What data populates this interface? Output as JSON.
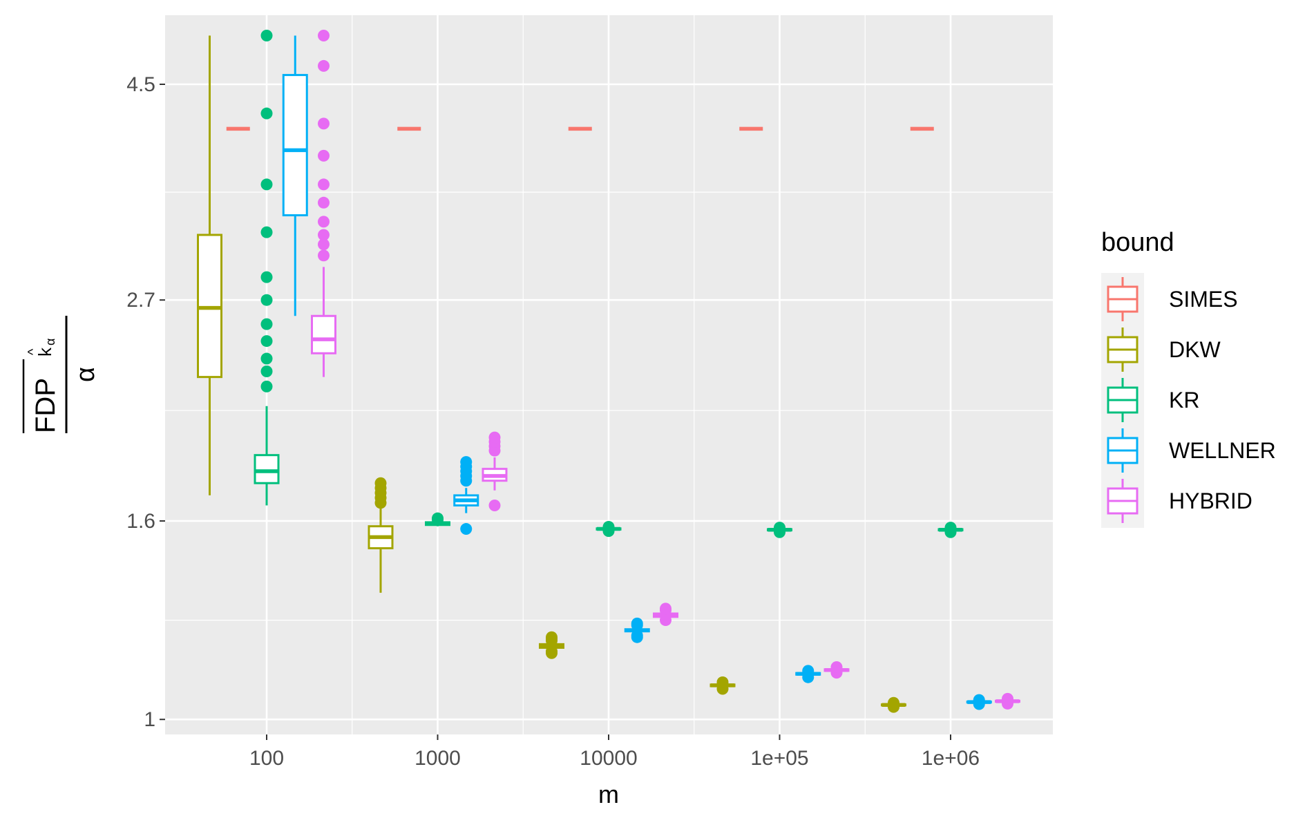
{
  "chart_data": {
    "type": "boxplot",
    "xlabel": "m",
    "ylabel": {
      "numerator_main": "FDP",
      "numerator_sub": "k",
      "numerator_subsub": "α",
      "numerator_hat": "^",
      "denominator": "α"
    },
    "x_scale": "log10",
    "categories": [
      "100",
      "1000",
      "10000",
      "1e+05",
      "1e+06"
    ],
    "y_scale": "log",
    "y_ticks": [
      1,
      1.6,
      2.7,
      4.5
    ],
    "y_tick_labels": [
      "1",
      "1.6",
      "2.7",
      "4.5"
    ],
    "ylim": [
      0.965,
      5.3
    ],
    "grid": true,
    "legend_position": "right",
    "legend_title": "bound",
    "series": [
      {
        "name": "SIMES",
        "color": "#F8766D",
        "boxes": [
          {
            "m": "100",
            "min": 4.05,
            "q1": 4.05,
            "median": 4.05,
            "q3": 4.05,
            "max": 4.05,
            "outliers": []
          },
          {
            "m": "1000",
            "min": 4.05,
            "q1": 4.05,
            "median": 4.05,
            "q3": 4.05,
            "max": 4.05,
            "outliers": []
          },
          {
            "m": "10000",
            "min": 4.05,
            "q1": 4.05,
            "median": 4.05,
            "q3": 4.05,
            "max": 4.05,
            "outliers": []
          },
          {
            "m": "1e+05",
            "min": 4.05,
            "q1": 4.05,
            "median": 4.05,
            "q3": 4.05,
            "max": 4.05,
            "outliers": []
          },
          {
            "m": "1e+06",
            "min": 4.05,
            "q1": 4.05,
            "median": 4.05,
            "q3": 4.05,
            "max": 4.05,
            "outliers": []
          }
        ]
      },
      {
        "name": "DKW",
        "color": "#A3A500",
        "boxes": [
          {
            "m": "100",
            "min": 1.7,
            "q1": 2.25,
            "median": 2.65,
            "q3": 3.15,
            "max": 5.05,
            "outliers": []
          },
          {
            "m": "1000",
            "min": 1.35,
            "q1": 1.5,
            "median": 1.54,
            "q3": 1.58,
            "max": 1.65,
            "outliers": [
              1.67,
              1.69,
              1.71,
              1.73,
              1.75
            ]
          },
          {
            "m": "10000",
            "min": 1.18,
            "q1": 1.185,
            "median": 1.19,
            "q3": 1.195,
            "max": 1.2,
            "outliers": [
              1.17,
              1.175,
              1.205,
              1.21,
              1.215
            ]
          },
          {
            "m": "1e+05",
            "min": 1.08,
            "q1": 1.082,
            "median": 1.084,
            "q3": 1.086,
            "max": 1.088,
            "outliers": [
              1.075,
              1.092
            ]
          },
          {
            "m": "1e+06",
            "min": 1.033,
            "q1": 1.034,
            "median": 1.035,
            "q3": 1.036,
            "max": 1.037,
            "outliers": [
              1.03,
              1.04
            ]
          }
        ]
      },
      {
        "name": "KR",
        "color": "#00BF7D",
        "boxes": [
          {
            "m": "100",
            "min": 1.66,
            "q1": 1.75,
            "median": 1.8,
            "q3": 1.87,
            "max": 2.1,
            "outliers": [
              2.2,
              2.28,
              2.35,
              2.45,
              2.55,
              2.7,
              2.85,
              3.17,
              3.55,
              4.2,
              5.05
            ]
          },
          {
            "m": "1000",
            "min": 1.58,
            "q1": 1.585,
            "median": 1.59,
            "q3": 1.595,
            "max": 1.6,
            "outliers": [
              1.605,
              1.61
            ]
          },
          {
            "m": "10000",
            "min": 1.565,
            "q1": 1.568,
            "median": 1.57,
            "q3": 1.572,
            "max": 1.575,
            "outliers": [
              1.562,
              1.578
            ]
          },
          {
            "m": "1e+05",
            "min": 1.562,
            "q1": 1.565,
            "median": 1.567,
            "q3": 1.569,
            "max": 1.572,
            "outliers": [
              1.558,
              1.575
            ]
          },
          {
            "m": "1e+06",
            "min": 1.562,
            "q1": 1.565,
            "median": 1.567,
            "q3": 1.569,
            "max": 1.572,
            "outliers": [
              1.558,
              1.575
            ]
          }
        ]
      },
      {
        "name": "WELLNER",
        "color": "#00B0F6",
        "boxes": [
          {
            "m": "100",
            "min": 2.6,
            "q1": 3.3,
            "median": 3.85,
            "q3": 4.6,
            "max": 5.05,
            "outliers": []
          },
          {
            "m": "1000",
            "min": 1.63,
            "q1": 1.66,
            "median": 1.68,
            "q3": 1.7,
            "max": 1.73,
            "outliers": [
              1.57,
              1.76,
              1.78,
              1.8,
              1.82,
              1.84
            ]
          },
          {
            "m": "10000",
            "min": 1.225,
            "q1": 1.232,
            "median": 1.235,
            "q3": 1.238,
            "max": 1.245,
            "outliers": [
              1.215,
              1.22,
              1.25,
              1.255
            ]
          },
          {
            "m": "1e+05",
            "min": 1.11,
            "q1": 1.112,
            "median": 1.114,
            "q3": 1.116,
            "max": 1.118,
            "outliers": [
              1.105,
              1.122
            ]
          },
          {
            "m": "1e+06",
            "min": 1.04,
            "q1": 1.041,
            "median": 1.042,
            "q3": 1.043,
            "max": 1.044,
            "outliers": [
              1.037,
              1.047
            ]
          }
        ]
      },
      {
        "name": "HYBRID",
        "color": "#E76BF3",
        "boxes": [
          {
            "m": "100",
            "min": 2.25,
            "q1": 2.38,
            "median": 2.46,
            "q3": 2.6,
            "max": 2.92,
            "outliers": [
              3.0,
              3.08,
              3.15,
              3.25,
              3.4,
              3.55,
              3.8,
              4.1,
              4.7,
              5.05
            ]
          },
          {
            "m": "1000",
            "min": 1.72,
            "q1": 1.76,
            "median": 1.78,
            "q3": 1.81,
            "max": 1.86,
            "outliers": [
              1.66,
              1.89,
              1.91,
              1.93,
              1.95
            ]
          },
          {
            "m": "10000",
            "min": 1.27,
            "q1": 1.275,
            "median": 1.28,
            "q3": 1.285,
            "max": 1.29,
            "outliers": [
              1.265,
              1.295,
              1.3
            ]
          },
          {
            "m": "1e+05",
            "min": 1.12,
            "q1": 1.122,
            "median": 1.124,
            "q3": 1.126,
            "max": 1.128,
            "outliers": [
              1.117,
              1.132
            ]
          },
          {
            "m": "1e+06",
            "min": 1.042,
            "q1": 1.043,
            "median": 1.044,
            "q3": 1.045,
            "max": 1.046,
            "outliers": [
              1.038,
              1.05
            ]
          }
        ]
      }
    ]
  }
}
